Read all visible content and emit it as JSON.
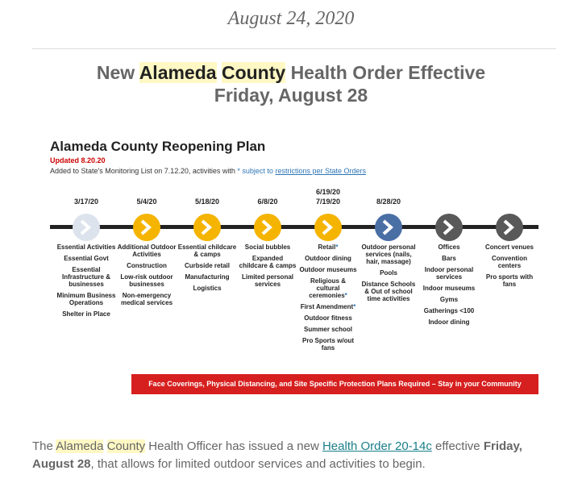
{
  "header": {
    "date": "August 24, 2020"
  },
  "heading": {
    "line1": [
      "New",
      "Alameda",
      "County",
      "Health Order Effective"
    ],
    "line2": "Friday, August 28"
  },
  "plan": {
    "title": "Alameda County Reopening Plan",
    "updated": "Updated 8.20.20",
    "note": [
      "Added to State's Monitoring List on 7.12.20, activities with",
      "*",
      "subject to",
      "restrictions per State Orders"
    ],
    "stages": [
      {
        "dates": [
          "3/17/20"
        ],
        "color": "#dde3ec",
        "items": [
          "Essential Activities",
          "Essential Govt",
          "Essential Infrastructure & businesses",
          "Minimum Business Operations",
          "Shelter in Place"
        ]
      },
      {
        "dates": [
          "5/4/20"
        ],
        "color": "#f5b400",
        "items": [
          "Additional Outdoor Activities",
          "Construction",
          "Low-risk outdoor businesses",
          "Non-emergency medical services"
        ]
      },
      {
        "dates": [
          "5/18/20"
        ],
        "color": "#f5b400",
        "items": [
          "Essential childcare & camps",
          "Curbside retail",
          "Manufacturing",
          "Logistics"
        ]
      },
      {
        "dates": [
          "6/8/20"
        ],
        "color": "#f5b400",
        "items": [
          "Social bubbles",
          "Expanded childcare & camps",
          "Limited personal services"
        ]
      },
      {
        "dates": [
          "6/19/20",
          "7/19/20"
        ],
        "color": "#f5b400",
        "items": [
          "Retail*",
          "Outdoor dining",
          "Outdoor museums",
          "Religious & cultural ceremonies*",
          "First Amendment*",
          "Outdoor fitness",
          "Summer school",
          "Pro Sports w/out fans"
        ]
      },
      {
        "dates": [
          "8/28/20"
        ],
        "color": "#4a6fa5",
        "items": [
          "Outdoor personal services (nails, hair, massage)",
          "Pools",
          "Distance Schools & Out of school time activities"
        ]
      },
      {
        "dates": [],
        "color": "#595959",
        "items": [
          "Offices",
          "Bars",
          "Indoor personal services",
          "Indoor museums",
          "Gyms",
          "Gatherings <100",
          "Indoor dining"
        ]
      },
      {
        "dates": [],
        "color": "#595959",
        "items": [
          "Concert venues",
          "Convention centers",
          "Pro sports with fans"
        ]
      }
    ],
    "banner": "Face Coverings, Physical Distancing, and Site Specific Protection Plans Required – Stay in your Community"
  },
  "paragraph": [
    "The",
    "Alameda",
    "County",
    "Health Officer has issued a new",
    "Health Order 20-14c",
    "effective",
    "Friday, August 28",
    ", that allows for limited outdoor services and activities to begin."
  ]
}
